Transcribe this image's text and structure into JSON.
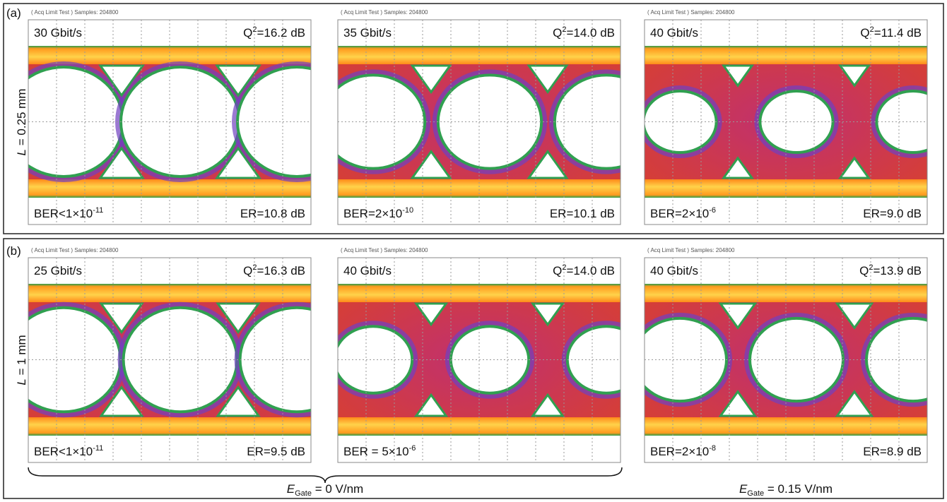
{
  "rows": [
    {
      "label": "(a)",
      "side_label": {
        "variable": "L",
        "text": " = 0.25 mm"
      },
      "panels": [
        {
          "header": "( Acq Limit Test ) Samples: 204800",
          "rate": "30 Gbit/s",
          "q": {
            "base": "Q",
            "exp": "2",
            "text": "=16.2 dB"
          },
          "ber": {
            "text": "BER<1×10",
            "exp": "-11"
          },
          "er": "ER=10.8 dB"
        },
        {
          "header": "( Acq Limit Test ) Samples: 204800",
          "rate": "35 Gbit/s",
          "q": {
            "base": "Q",
            "exp": "2",
            "text": "=14.0 dB"
          },
          "ber": {
            "text": "BER=2×10",
            "exp": "-10"
          },
          "er": "ER=10.1 dB"
        },
        {
          "header": "( Acq Limit Test ) Samples: 204800",
          "rate": "40 Gbit/s",
          "q": {
            "base": "Q",
            "exp": "2",
            "text": "=11.4 dB"
          },
          "ber": {
            "text": "BER=2×10",
            "exp": "-6"
          },
          "er": "ER=9.0 dB"
        }
      ]
    },
    {
      "label": "(b)",
      "side_label": {
        "variable": "L",
        "text": " = 1 mm"
      },
      "panels": [
        {
          "header": "( Acq Limit Test ) Samples: 204800",
          "rate": "25 Gbit/s",
          "q": {
            "base": "Q",
            "exp": "2",
            "text": "=16.3 dB"
          },
          "ber": {
            "text": "BER<1×10",
            "exp": "-11"
          },
          "er": "ER=9.5 dB"
        },
        {
          "header": "( Acq Limit Test ) Samples: 204800",
          "rate": "40 Gbit/s",
          "q": {
            "base": "Q",
            "exp": "2",
            "text": "=14.0 dB"
          },
          "ber": {
            "text": "BER = 5×10",
            "exp": "-6"
          },
          "er": ""
        },
        {
          "header": "( Acq Limit Test ) Samples: 204800",
          "rate": "40 Gbit/s",
          "q": {
            "base": "Q",
            "exp": "2",
            "text": "=13.9 dB"
          },
          "ber": {
            "text": "BER=2×10",
            "exp": "-8"
          },
          "er": "ER=8.9 dB"
        }
      ]
    }
  ],
  "footer": [
    {
      "variable": "E",
      "subscript": "Gate",
      "text": " = 0 V/nm"
    },
    {
      "variable": "E",
      "subscript": "Gate",
      "text": " = 0.15 V/nm"
    }
  ]
}
